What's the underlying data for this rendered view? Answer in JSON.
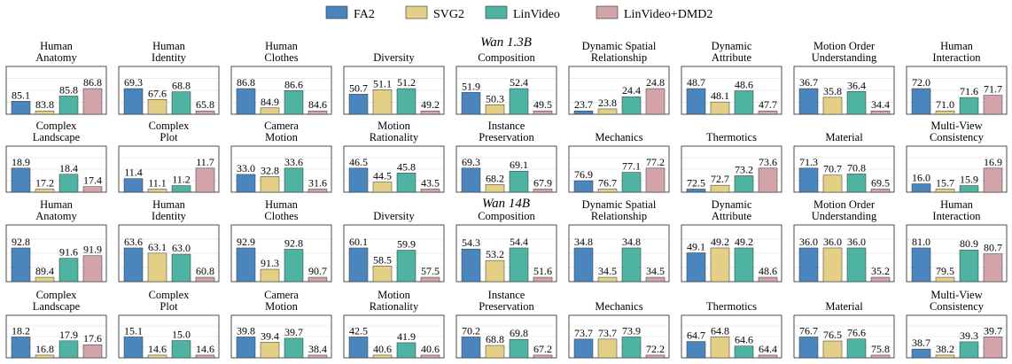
{
  "legend": [
    {
      "name": "FA2",
      "color": "#4a86bd"
    },
    {
      "name": "SVG2",
      "color": "#e3cf86"
    },
    {
      "name": "LinVideo",
      "color": "#4eb3a2"
    },
    {
      "name": "LinVideo+DMD2",
      "color": "#d2a3a8"
    }
  ],
  "chart_data": [
    {
      "type": "bar",
      "model": "Wan 1.3B",
      "series_names": [
        "FA2",
        "SVG2",
        "LinVideo",
        "LinVideo+DMD2"
      ],
      "panels": [
        {
          "title": [
            "Human",
            "Anatomy"
          ],
          "values": [
            85.1,
            83.8,
            85.8,
            86.8
          ]
        },
        {
          "title": [
            "Human",
            "Identity"
          ],
          "values": [
            69.3,
            67.6,
            68.8,
            65.8
          ]
        },
        {
          "title": [
            "Human",
            "Clothes"
          ],
          "values": [
            86.8,
            84.9,
            86.6,
            84.6
          ]
        },
        {
          "title": [
            "Diversity"
          ],
          "values": [
            50.7,
            51.1,
            51.2,
            49.2
          ]
        },
        {
          "title": [
            "Composition"
          ],
          "values": [
            51.9,
            50.3,
            52.4,
            49.5
          ]
        },
        {
          "title": [
            "Dynamic Spatial",
            "Relationship"
          ],
          "values": [
            23.7,
            23.8,
            24.4,
            24.8
          ]
        },
        {
          "title": [
            "Dynamic",
            "Attribute"
          ],
          "values": [
            48.7,
            48.1,
            48.6,
            47.7
          ]
        },
        {
          "title": [
            "Motion Order",
            "Understanding"
          ],
          "values": [
            36.7,
            35.8,
            36.4,
            34.4
          ]
        },
        {
          "title": [
            "Human",
            "Interaction"
          ],
          "values": [
            72.0,
            71.0,
            71.6,
            71.7
          ]
        },
        {
          "title": [
            "Complex",
            "Landscape"
          ],
          "values": [
            18.9,
            17.2,
            18.4,
            17.4
          ]
        },
        {
          "title": [
            "Complex",
            "Plot"
          ],
          "values": [
            11.4,
            11.1,
            11.2,
            11.7
          ]
        },
        {
          "title": [
            "Camera",
            "Motion"
          ],
          "values": [
            33.0,
            32.8,
            33.6,
            31.6
          ]
        },
        {
          "title": [
            "Motion",
            "Rationality"
          ],
          "values": [
            46.5,
            44.5,
            45.8,
            43.5
          ]
        },
        {
          "title": [
            "Instance",
            "Preservation"
          ],
          "values": [
            69.3,
            68.2,
            69.1,
            67.9
          ]
        },
        {
          "title": [
            "Mechanics"
          ],
          "values": [
            76.9,
            76.7,
            77.1,
            77.2
          ]
        },
        {
          "title": [
            "Thermotics"
          ],
          "values": [
            72.5,
            72.7,
            73.2,
            73.6
          ]
        },
        {
          "title": [
            "Material"
          ],
          "values": [
            71.3,
            70.7,
            70.8,
            69.5
          ]
        },
        {
          "title": [
            "Multi-View",
            "Consistency"
          ],
          "values": [
            16.0,
            15.7,
            15.9,
            16.9
          ]
        }
      ]
    },
    {
      "type": "bar",
      "model": "Wan 14B",
      "series_names": [
        "FA2",
        "SVG2",
        "LinVideo",
        "LinVideo+DMD2"
      ],
      "panels": [
        {
          "title": [
            "Human",
            "Anatomy"
          ],
          "values": [
            92.8,
            89.4,
            91.6,
            91.9
          ]
        },
        {
          "title": [
            "Human",
            "Identity"
          ],
          "values": [
            63.6,
            63.1,
            63.0,
            60.8
          ]
        },
        {
          "title": [
            "Human",
            "Clothes"
          ],
          "values": [
            92.9,
            91.3,
            92.8,
            90.7
          ]
        },
        {
          "title": [
            "Diversity"
          ],
          "values": [
            60.1,
            58.5,
            59.9,
            57.5
          ]
        },
        {
          "title": [
            "Composition"
          ],
          "values": [
            54.3,
            53.2,
            54.4,
            51.6
          ]
        },
        {
          "title": [
            "Dynamic Spatial",
            "Relationship"
          ],
          "values": [
            34.8,
            34.5,
            34.8,
            34.5
          ]
        },
        {
          "title": [
            "Dynamic",
            "Attribute"
          ],
          "values": [
            49.1,
            49.2,
            49.2,
            48.6
          ]
        },
        {
          "title": [
            "Motion Order",
            "Understanding"
          ],
          "values": [
            36.0,
            36.0,
            36.0,
            35.2
          ]
        },
        {
          "title": [
            "Human",
            "Interaction"
          ],
          "values": [
            81.0,
            79.5,
            80.9,
            80.7
          ]
        },
        {
          "title": [
            "Complex",
            "Landscape"
          ],
          "values": [
            18.2,
            16.8,
            17.9,
            17.6
          ]
        },
        {
          "title": [
            "Complex",
            "Plot"
          ],
          "values": [
            15.1,
            14.6,
            15.0,
            14.6
          ]
        },
        {
          "title": [
            "Camera",
            "Motion"
          ],
          "values": [
            39.8,
            39.4,
            39.7,
            38.4
          ]
        },
        {
          "title": [
            "Motion",
            "Rationality"
          ],
          "values": [
            42.5,
            40.6,
            41.9,
            40.6
          ]
        },
        {
          "title": [
            "Instance",
            "Preservation"
          ],
          "values": [
            70.2,
            68.8,
            69.8,
            67.2
          ]
        },
        {
          "title": [
            "Mechanics"
          ],
          "values": [
            73.7,
            73.7,
            73.9,
            72.2
          ]
        },
        {
          "title": [
            "Thermotics"
          ],
          "values": [
            64.7,
            64.8,
            64.6,
            64.4
          ]
        },
        {
          "title": [
            "Material"
          ],
          "values": [
            76.7,
            76.5,
            76.6,
            75.8
          ]
        },
        {
          "title": [
            "Multi-View",
            "Consistency"
          ],
          "values": [
            38.7,
            38.2,
            39.3,
            39.7
          ]
        }
      ]
    }
  ]
}
